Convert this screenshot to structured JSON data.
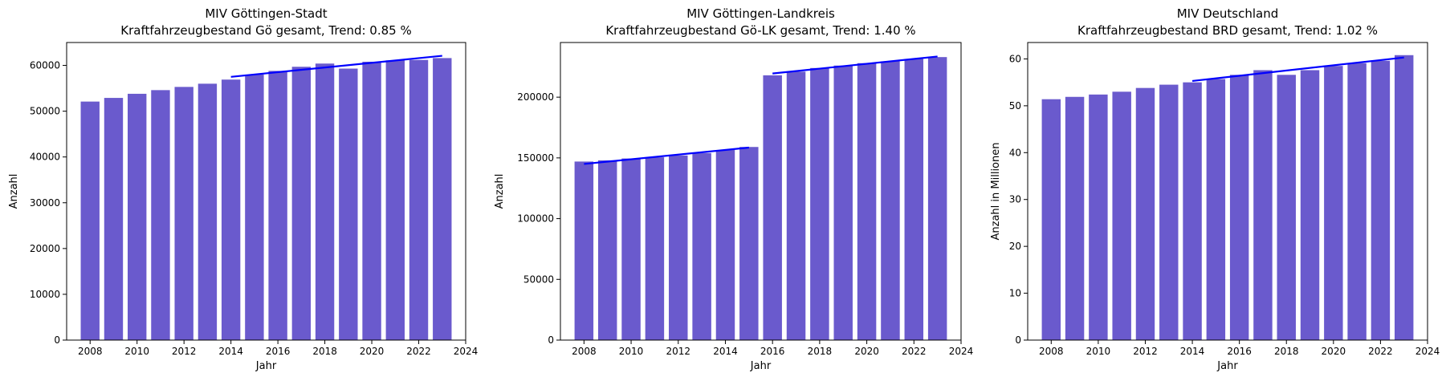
{
  "chart_data": [
    {
      "type": "bar",
      "title_line1": "MIV Göttingen-Stadt",
      "title_line2": "Kraftfahrzeugbestand Gö gesamt, Trend:  0.85 %",
      "xlabel": "Jahr",
      "ylabel": "Anzahl",
      "xlim": [
        2007,
        2024
      ],
      "ylim": [
        0,
        65000
      ],
      "xticks": [
        2008,
        2010,
        2012,
        2014,
        2016,
        2018,
        2020,
        2022,
        2024
      ],
      "yticks": [
        0,
        10000,
        20000,
        30000,
        40000,
        50000,
        60000
      ],
      "x": [
        2008,
        2009,
        2010,
        2011,
        2012,
        2013,
        2014,
        2015,
        2016,
        2017,
        2018,
        2019,
        2020,
        2021,
        2022,
        2023
      ],
      "values": [
        52100,
        52900,
        53800,
        54600,
        55300,
        56000,
        56900,
        58000,
        58800,
        59700,
        60400,
        59300,
        60800,
        61100,
        61200,
        61600
      ],
      "bar_color": "#6a5acd",
      "trend_color": "#0000ff",
      "trend_lines": [
        {
          "x": [
            2014,
            2023
          ],
          "y": [
            57500,
            62100
          ]
        }
      ]
    },
    {
      "type": "bar",
      "title_line1": "MIV Göttingen-Landkreis",
      "title_line2": "Kraftfahrzeugbestand Gö-LK gesamt, Trend:  1.40 %",
      "xlabel": "Jahr",
      "ylabel": "Anzahl",
      "xlim": [
        2007,
        2024
      ],
      "ylim": [
        0,
        245000
      ],
      "xticks": [
        2008,
        2010,
        2012,
        2014,
        2016,
        2018,
        2020,
        2022,
        2024
      ],
      "yticks": [
        0,
        50000,
        100000,
        150000,
        200000
      ],
      "x": [
        2008,
        2009,
        2010,
        2011,
        2012,
        2013,
        2014,
        2015,
        2016,
        2017,
        2018,
        2019,
        2020,
        2021,
        2022,
        2023
      ],
      "values": [
        147000,
        148000,
        149500,
        150500,
        152000,
        154000,
        156500,
        159000,
        218000,
        221000,
        224000,
        226000,
        228000,
        229500,
        231500,
        233000
      ],
      "bar_color": "#6a5acd",
      "trend_color": "#0000ff",
      "trend_lines": [
        {
          "x": [
            2008,
            2015
          ],
          "y": [
            145000,
            158500
          ]
        },
        {
          "x": [
            2016,
            2023
          ],
          "y": [
            219500,
            233500
          ]
        }
      ]
    },
    {
      "type": "bar",
      "title_line1": "MIV Deutschland",
      "title_line2": "Kraftfahrzeugbestand BRD gesamt, Trend:  1.02 %",
      "xlabel": "Jahr",
      "ylabel": "Anzahl  in Millionen",
      "xlim": [
        2007,
        2024
      ],
      "ylim": [
        0,
        63.5
      ],
      "xticks": [
        2008,
        2010,
        2012,
        2014,
        2016,
        2018,
        2020,
        2022,
        2024
      ],
      "yticks": [
        0,
        10,
        20,
        30,
        40,
        50,
        60
      ],
      "x": [
        2008,
        2009,
        2010,
        2011,
        2012,
        2013,
        2014,
        2015,
        2016,
        2017,
        2018,
        2019,
        2020,
        2021,
        2022,
        2023
      ],
      "values": [
        51.4,
        51.9,
        52.4,
        53.0,
        53.8,
        54.5,
        55.0,
        55.7,
        56.6,
        57.6,
        56.6,
        57.6,
        58.5,
        59.1,
        59.6,
        60.8
      ],
      "bar_color": "#6a5acd",
      "trend_color": "#0000ff",
      "trend_lines": [
        {
          "x": [
            2014,
            2023
          ],
          "y": [
            55.3,
            60.3
          ]
        }
      ]
    }
  ]
}
